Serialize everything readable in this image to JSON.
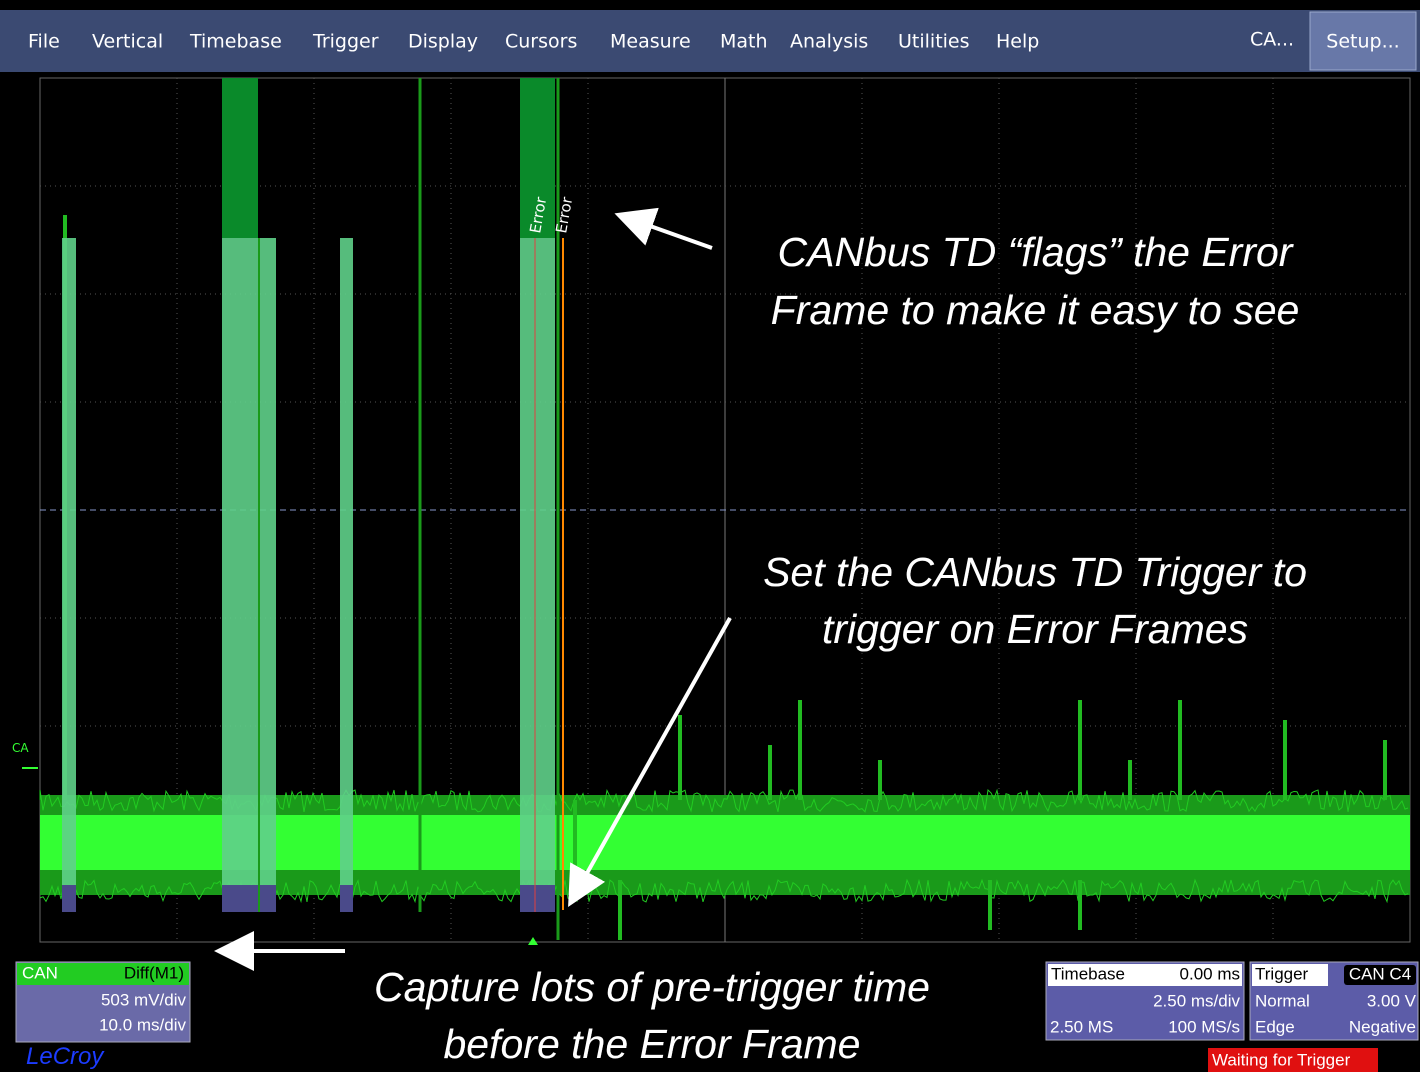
{
  "menu": {
    "items": [
      "File",
      "Vertical",
      "Timebase",
      "Trigger",
      "Display",
      "Cursors",
      "Measure",
      "Math",
      "Analysis",
      "Utilities",
      "Help"
    ],
    "right": [
      "CA...",
      "Setup..."
    ]
  },
  "waveform": {
    "channel_marker": "CA",
    "flags": [
      "Error",
      "Error"
    ]
  },
  "annotations": [
    [
      "CANbus TD “flags” the Error",
      "Frame to make it easy to see"
    ],
    [
      "Set the CANbus TD Trigger to",
      "trigger on Error Frames"
    ],
    [
      "Capture lots of pre-trigger time",
      "before the Error Frame"
    ]
  ],
  "channel": {
    "name": "CAN",
    "source": "Diff(M1)",
    "vdiv": "503 mV/div",
    "tdiv": "10.0 ms/div"
  },
  "brand": "LeCroy",
  "timebase": {
    "label": "Timebase",
    "delay": "0.00 ms",
    "tdiv": "2.50 ms/div",
    "samples": "2.50 MS",
    "rate": "100 MS/s"
  },
  "trigger": {
    "label": "Trigger",
    "source": "CAN C4",
    "mode": "Normal",
    "level": "3.00 V",
    "type": "Edge",
    "slope": "Negative"
  },
  "status": "Waiting for Trigger"
}
